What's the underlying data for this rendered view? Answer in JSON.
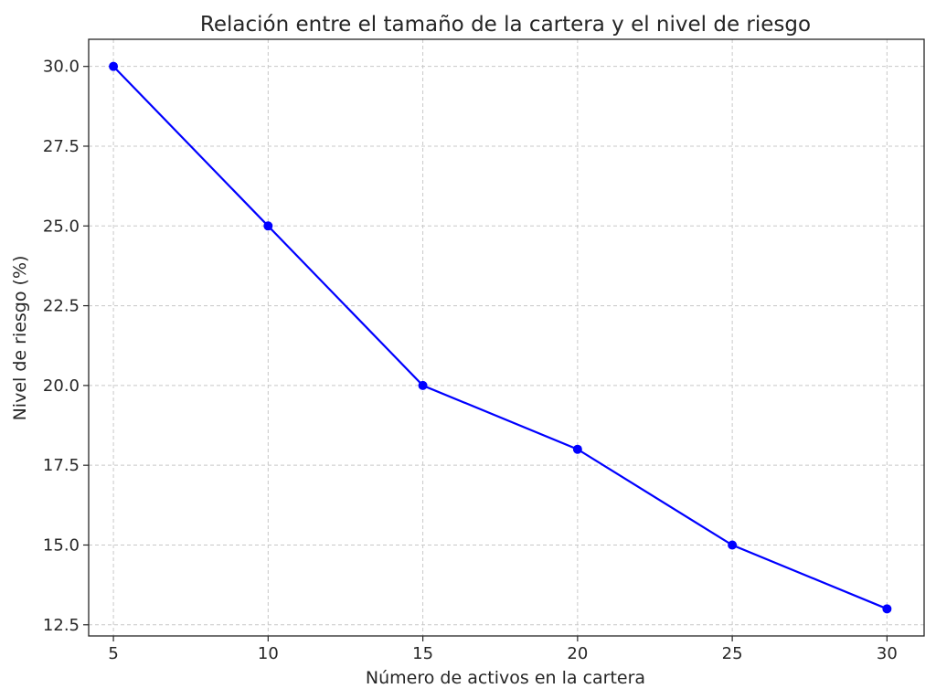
{
  "chart_data": {
    "type": "line",
    "title": "Relación entre el tamaño de la cartera y el nivel de riesgo",
    "xlabel": "Número de activos en la cartera",
    "ylabel": "Nivel de riesgo (%)",
    "x": [
      5,
      10,
      15,
      20,
      25,
      30
    ],
    "series": [
      {
        "values": [
          30,
          25,
          20,
          18,
          15,
          13
        ],
        "color": "#0000ff",
        "marker": "circle"
      }
    ],
    "xticks": [
      "5",
      "10",
      "15",
      "20",
      "25",
      "30"
    ],
    "yticks": [
      "12.5",
      "15.0",
      "17.5",
      "20.0",
      "22.5",
      "25.0",
      "27.5",
      "30.0"
    ],
    "xlim": [
      4.2,
      31.2
    ],
    "ylim": [
      12.15,
      30.85
    ],
    "grid": true
  }
}
